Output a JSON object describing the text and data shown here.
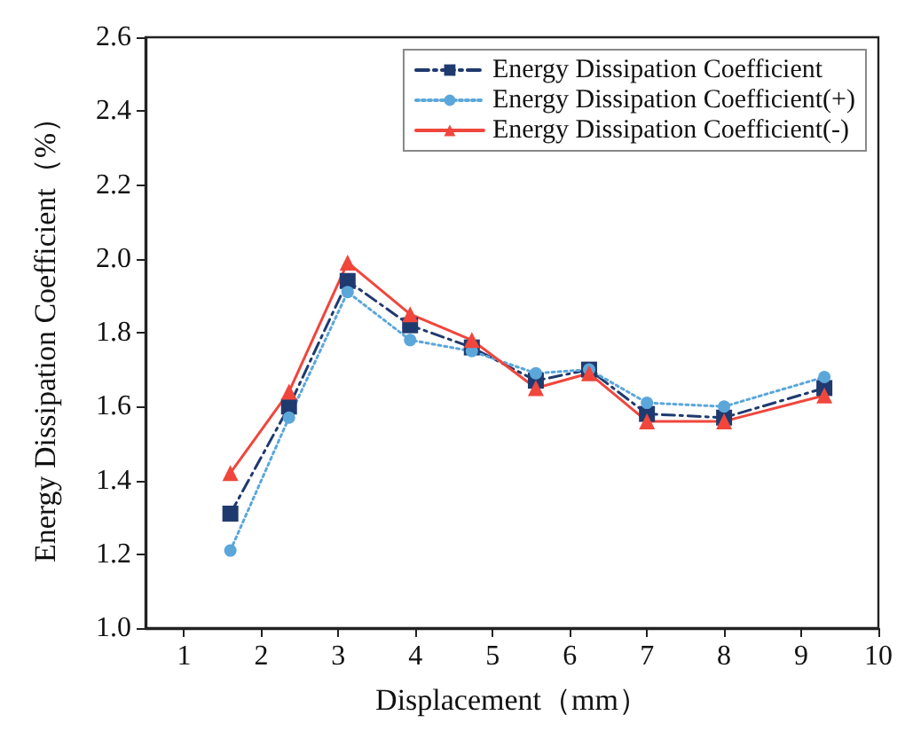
{
  "chart_data": {
    "type": "line",
    "xlabel": "Displacement（mm）",
    "ylabel": "Energy Dissipation Coefficient（%）",
    "x": [
      1.6,
      2.36,
      3.12,
      3.93,
      4.73,
      5.56,
      6.25,
      7.0,
      8.0,
      9.3
    ],
    "series": [
      {
        "name": "Energy Dissipation Coefficient",
        "color": "#1f3a6e",
        "marker": "square",
        "line_style": "dashdot",
        "values": [
          1.31,
          1.6,
          1.94,
          1.82,
          1.76,
          1.67,
          1.7,
          1.58,
          1.57,
          1.65
        ]
      },
      {
        "name": "Energy Dissipation Coefficient(+)",
        "color": "#5ba7da",
        "marker": "circle",
        "line_style": "dotted",
        "values": [
          1.21,
          1.57,
          1.91,
          1.78,
          1.75,
          1.69,
          1.7,
          1.61,
          1.6,
          1.68
        ]
      },
      {
        "name": "Energy Dissipation Coefficient(-)",
        "color": "#f0463c",
        "marker": "triangle",
        "line_style": "solid",
        "values": [
          1.42,
          1.64,
          1.99,
          1.85,
          1.78,
          1.65,
          1.69,
          1.56,
          1.56,
          1.63
        ]
      }
    ],
    "xlim": [
      0.5,
      10
    ],
    "xticks": [
      1,
      2,
      3,
      4,
      5,
      6,
      7,
      8,
      9,
      10
    ],
    "ylim": [
      1.0,
      2.6
    ],
    "yticks": [
      {
        "value": 1.0,
        "label": "1.0"
      },
      {
        "value": 1.2,
        "label": "1.2"
      },
      {
        "value": 1.4,
        "label": "1.4"
      },
      {
        "value": 1.6,
        "label": "1.6"
      },
      {
        "value": 1.8,
        "label": "1.8"
      },
      {
        "value": 2.0,
        "label": "2.0"
      },
      {
        "value": 2.2,
        "label": "2.2"
      },
      {
        "value": 2.4,
        "label": "2.4"
      },
      {
        "value": 2.6,
        "label": "2.6"
      }
    ],
    "grid": false,
    "legend": "top right"
  }
}
